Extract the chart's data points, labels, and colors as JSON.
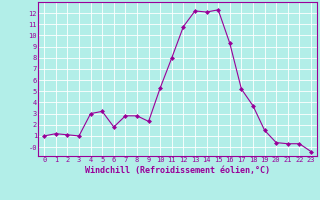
{
  "x": [
    0,
    1,
    2,
    3,
    4,
    5,
    6,
    7,
    8,
    9,
    10,
    11,
    12,
    13,
    14,
    15,
    16,
    17,
    18,
    19,
    20,
    21,
    22,
    23
  ],
  "y": [
    1,
    1.2,
    1.1,
    1.0,
    3.0,
    3.2,
    1.8,
    2.8,
    2.8,
    2.3,
    5.3,
    8.0,
    10.8,
    12.2,
    12.1,
    12.3,
    9.3,
    5.2,
    3.7,
    1.5,
    0.4,
    0.3,
    0.3,
    -0.4
  ],
  "line_color": "#990099",
  "marker": "D",
  "marker_size": 2,
  "bg_color": "#b2eee8",
  "grid_color": "#ffffff",
  "xlabel": "Windchill (Refroidissement éolien,°C)",
  "xlabel_color": "#990099",
  "tick_color": "#990099",
  "ylim": [
    -0.8,
    13
  ],
  "xlim": [
    -0.5,
    23.5
  ],
  "yticks": [
    0,
    1,
    2,
    3,
    4,
    5,
    6,
    7,
    8,
    9,
    10,
    11,
    12
  ],
  "ytick_labels": [
    "-0",
    "1",
    "2",
    "3",
    "4",
    "5",
    "6",
    "7",
    "8",
    "9",
    "10",
    "11",
    "12"
  ],
  "xticks": [
    0,
    1,
    2,
    3,
    4,
    5,
    6,
    7,
    8,
    9,
    10,
    11,
    12,
    13,
    14,
    15,
    16,
    17,
    18,
    19,
    20,
    21,
    22,
    23
  ],
  "tick_fontsize": 5.0,
  "xlabel_fontsize": 6.0,
  "spine_color": "#990099"
}
